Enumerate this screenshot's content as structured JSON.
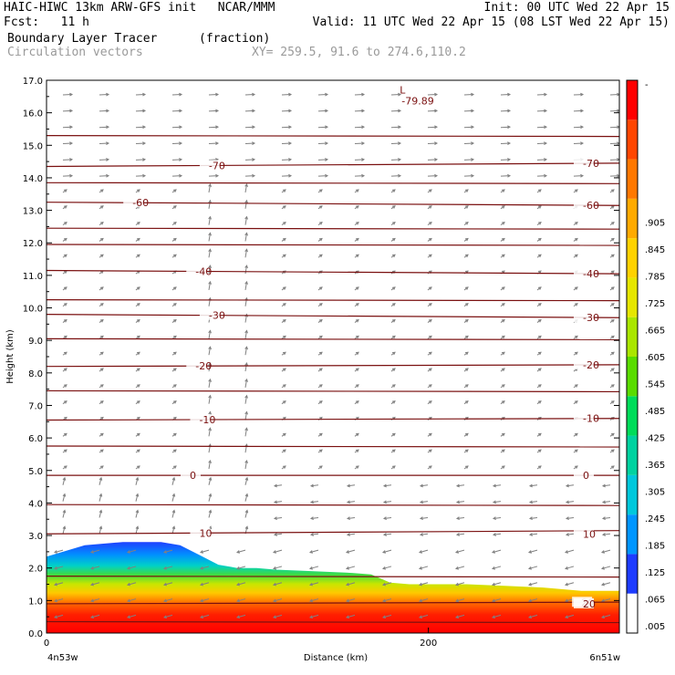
{
  "header": {
    "line1_left": "HAIC-HIWC 13km ARW-GFS init   NCAR/MMM",
    "line1_right": "Init: 00 UTC Wed 22 Apr 15",
    "line2_left": "Fcst:   11 h",
    "line2_right": "Valid: 11 UTC Wed 22 Apr 15 (08 LST Wed 22 Apr 15)",
    "field_name": "Boundary Layer Tracer",
    "field_units": "(fraction)",
    "vector_name": "Circulation vectors",
    "xsec_coords": "XY= 259.5, 91.6 to 274.6,110.2"
  },
  "colors": {
    "contour": "#7a1010",
    "vectors": "#808080",
    "colorbar": [
      "#ffffff",
      "#1e3cff",
      "#0096ff",
      "#00c8dc",
      "#00d2a0",
      "#00dc5a",
      "#5adc00",
      "#aae600",
      "#e6e600",
      "#ffd200",
      "#ffaa00",
      "#ff7800",
      "#ff4600",
      "#ff0000"
    ]
  },
  "chart_data": {
    "type": "heatmap",
    "xlabel": "Distance (km)",
    "ylabel": "Height (km)",
    "xlim": [
      0,
      300
    ],
    "ylim": [
      0.0,
      17.0
    ],
    "x_ticks": [
      {
        "value": 0,
        "label": "0"
      },
      {
        "value": 200,
        "label": "200"
      }
    ],
    "x_endpoint_labels": [
      "4n53w",
      "6n51w"
    ],
    "y_ticks": [
      "0.0",
      "1.0",
      "2.0",
      "3.0",
      "4.0",
      "5.0",
      "6.0",
      "7.0",
      "8.0",
      "9.0",
      "10.0",
      "11.0",
      "12.0",
      "13.0",
      "14.0",
      "15.0",
      "16.0",
      "17.0"
    ],
    "colorbar_labels": [
      ".005",
      ".065",
      ".125",
      ".185",
      ".245",
      ".305",
      ".365",
      ".425",
      ".485",
      ".545",
      ".605",
      ".665",
      ".725",
      ".785",
      ".845",
      ".905",
      "-"
    ],
    "boundary_layer_top_km": {
      "x": [
        0,
        20,
        40,
        60,
        70,
        80,
        90,
        100,
        110,
        120,
        140,
        160,
        170,
        180,
        190,
        200,
        220,
        240,
        260,
        280,
        300
      ],
      "y": [
        2.35,
        2.7,
        2.8,
        2.8,
        2.7,
        2.4,
        2.1,
        2.0,
        2.0,
        1.95,
        1.9,
        1.85,
        1.8,
        1.55,
        1.5,
        1.5,
        1.5,
        1.45,
        1.4,
        1.3,
        1.3
      ]
    },
    "temperature_contours": [
      {
        "label": "20",
        "label_x": 280,
        "y0": 0.9,
        "y1": 0.95
      },
      {
        "label": "10",
        "label_x": 80,
        "y0": 3.05,
        "y1": 3.15
      },
      {
        "label": "0",
        "label_x": 75,
        "y0": 4.85,
        "y1": 4.85
      },
      {
        "label": "-10",
        "label_x": 80,
        "y0": 6.55,
        "y1": 6.6
      },
      {
        "label": "-20",
        "label_x": 78,
        "y0": 8.2,
        "y1": 8.25
      },
      {
        "label": "-30",
        "label_x": 85,
        "y0": 9.8,
        "y1": 9.7
      },
      {
        "label": "-40",
        "label_x": 78,
        "y0": 11.15,
        "y1": 11.05
      },
      {
        "label": "-60",
        "label_x": 45,
        "y0": 13.25,
        "y1": 13.15
      },
      {
        "label": "-70",
        "label_x": 85,
        "y0": 14.35,
        "y1": 14.45
      }
    ],
    "contour_right_labels": [
      {
        "label": "20",
        "y": 0.9
      },
      {
        "label": "10",
        "y": 3.05
      },
      {
        "label": "0",
        "y": 4.85
      },
      {
        "label": "-10",
        "y": 6.6
      },
      {
        "label": "-20",
        "y": 8.25
      },
      {
        "label": "-30",
        "y": 9.7
      },
      {
        "label": "-40",
        "y": 11.05
      },
      {
        "label": "-60",
        "y": 13.15
      },
      {
        "label": "-70",
        "y": 14.45
      }
    ],
    "unlabeled_contour_levels_km": [
      0.35,
      1.75,
      3.95,
      5.75,
      7.45,
      9.05,
      10.25,
      11.95,
      12.45,
      13.85,
      15.3
    ],
    "minimum": {
      "marker": "L",
      "value": "-79.89",
      "x": 185,
      "y": 16.6
    }
  }
}
